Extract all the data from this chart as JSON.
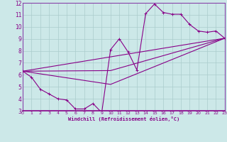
{
  "xlabel": "Windchill (Refroidissement éolien,°C)",
  "bg_color": "#cce8e8",
  "line_color": "#880088",
  "grid_color": "#aacccc",
  "spine_color": "#8844aa",
  "xlim": [
    0,
    23
  ],
  "ylim": [
    3,
    12
  ],
  "xticks": [
    0,
    1,
    2,
    3,
    4,
    5,
    6,
    7,
    8,
    9,
    10,
    11,
    12,
    13,
    14,
    15,
    16,
    17,
    18,
    19,
    20,
    21,
    22,
    23
  ],
  "yticks": [
    3,
    4,
    5,
    6,
    7,
    8,
    9,
    10,
    11,
    12
  ],
  "line1_x": [
    0,
    1,
    2,
    3,
    4,
    5,
    6,
    7,
    8,
    9,
    10,
    11,
    12,
    13,
    14,
    15,
    16,
    17,
    18,
    19,
    20,
    21,
    22,
    23
  ],
  "line1_y": [
    6.3,
    5.8,
    4.8,
    4.4,
    4.0,
    3.9,
    3.15,
    3.15,
    3.6,
    2.85,
    8.1,
    9.0,
    7.9,
    6.4,
    11.1,
    11.9,
    11.2,
    11.05,
    11.05,
    10.2,
    9.65,
    9.55,
    9.65,
    9.05
  ],
  "line2_x": [
    0,
    23
  ],
  "line2_y": [
    6.3,
    9.05
  ],
  "line3_x": [
    0,
    10,
    23
  ],
  "line3_y": [
    6.3,
    6.35,
    9.05
  ],
  "line4_x": [
    0,
    10,
    23
  ],
  "line4_y": [
    6.3,
    5.2,
    9.05
  ]
}
